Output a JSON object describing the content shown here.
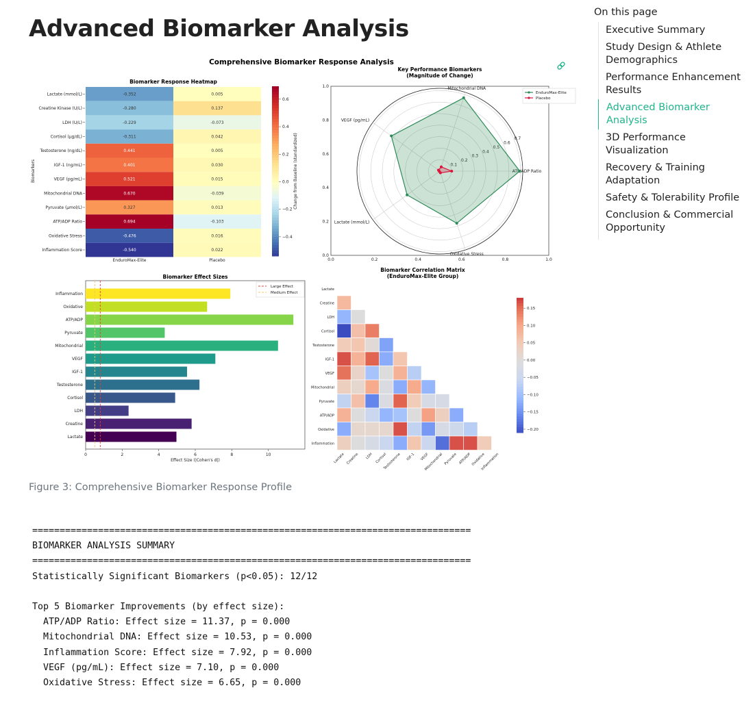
{
  "page": {
    "title": "Advanced Biomarker Analysis",
    "caption": "Figure 3: Comprehensive Biomarker Response Profile"
  },
  "toc": {
    "title": "On this page",
    "items": [
      {
        "label": "Executive Summary",
        "active": false
      },
      {
        "label": "Study Design & Athlete Demographics",
        "active": false
      },
      {
        "label": "Performance Enhancement Results",
        "active": false
      },
      {
        "label": "Advanced Biomarker Analysis",
        "active": true
      },
      {
        "label": "3D Performance Visualization",
        "active": false
      },
      {
        "label": "Recovery & Training Adaptation",
        "active": false
      },
      {
        "label": "Safety & Tolerability Profile",
        "active": false
      },
      {
        "label": "Conclusion & Commercial Opportunity",
        "active": false
      }
    ],
    "accent_color": "#1fb48a"
  },
  "figure": {
    "suptitle": "Comprehensive Biomarker Response Analysis",
    "link_icon": "link-icon"
  },
  "chart_data": [
    {
      "type": "heatmap",
      "title": "Biomarker Response Heatmap",
      "ylabel": "Biomarkers",
      "colorbar_label": "Change from Baseline (standardized)",
      "colormap": "RdYlBu_r",
      "colorbar_range": [
        -0.54,
        0.694
      ],
      "colorbar_ticks": [
        "0.6",
        "0.4",
        "0.2",
        "0.0",
        "−0.2",
        "−0.4"
      ],
      "columns": [
        "EnduroMax-Elite",
        "Placebo"
      ],
      "rows": [
        "Lactate (mmol/L)",
        "Creatine Kinase (U/L)",
        "LDH (U/L)",
        "Cortisol (μg/dL)",
        "Testosterone (ng/dL)",
        "IGF-1 (ng/mL)",
        "VEGF (pg/mL)",
        "Mitochondrial DNA",
        "Pyruvate (μmol/L)",
        "ATP/ADP Ratio",
        "Oxidative Stress",
        "Inflammation Score"
      ],
      "values": [
        [
          "-0.352",
          "0.005"
        ],
        [
          "-0.280",
          "0.137"
        ],
        [
          "-0.229",
          "-0.073"
        ],
        [
          "-0.311",
          "0.042"
        ],
        [
          "0.441",
          "0.005"
        ],
        [
          "0.401",
          "0.030"
        ],
        [
          "0.521",
          "0.015"
        ],
        [
          "0.670",
          "-0.039"
        ],
        [
          "0.327",
          "0.013"
        ],
        [
          "0.694",
          "-0.103"
        ],
        [
          "-0.476",
          "0.016"
        ],
        [
          "-0.540",
          "0.022"
        ]
      ]
    },
    {
      "type": "radar",
      "title": "Key Performance Biomarkers\n(Magnitude of Change)",
      "title_lines": [
        "Key Performance Biomarkers",
        "(Magnitude of Change)"
      ],
      "axes": [
        "ATP/ADP Ratio",
        "Mitochondrial DNA",
        "VEGF (pg/mL)",
        "Lactate (mmol/L)",
        "Oxidative Stress"
      ],
      "radial_ticks": [
        "0.1",
        "0.2",
        "0.3",
        "0.4",
        "0.5",
        "0.6",
        "0.7"
      ],
      "rmax": 0.72,
      "frame_ticks": [
        "0.0",
        "0.2",
        "0.4",
        "0.6",
        "0.8",
        "1.0"
      ],
      "legend_position": "top-right",
      "series": [
        {
          "name": "EnduroMax-Elite",
          "values": [
            0.694,
            0.67,
            0.521,
            0.352,
            0.476
          ],
          "color": "#2e8b57"
        },
        {
          "name": "Placebo",
          "values": [
            0.103,
            0.039,
            0.015,
            0.005,
            0.016
          ],
          "color": "#dc143c"
        }
      ]
    },
    {
      "type": "bar",
      "orientation": "horizontal",
      "title": "Biomarker Effect Sizes",
      "xlabel": "Effect Size (|Cohen's d|)",
      "xlim": [
        0,
        12
      ],
      "xticks": [
        "0",
        "2",
        "4",
        "6",
        "8",
        "10"
      ],
      "colormap": "viridis",
      "categories": [
        "Inflammation",
        "Oxidative",
        "ATP/ADP",
        "Pyruvate",
        "Mitochondrial",
        "VEGF",
        "IGF-1",
        "Testosterone",
        "Cortisol",
        "LDH",
        "Creatine",
        "Lactate"
      ],
      "values": [
        7.92,
        6.65,
        11.37,
        4.33,
        10.53,
        7.1,
        5.55,
        6.23,
        4.9,
        2.35,
        5.8,
        4.97
      ],
      "colors": [
        "#fde725",
        "#c2df23",
        "#86d549",
        "#52c569",
        "#2ab07f",
        "#1e9b8a",
        "#25858e",
        "#2d708e",
        "#38588c",
        "#433e85",
        "#482173",
        "#440154"
      ],
      "reference_lines": [
        {
          "name": "Large Effect",
          "value": 0.8,
          "color": "#e8402a"
        },
        {
          "name": "Medium Effect",
          "value": 0.5,
          "color": "#f6c56b"
        }
      ],
      "legend_position": "top-right"
    },
    {
      "type": "heatmap",
      "title_lines": [
        "Biomarker Correlation Matrix",
        "(EnduroMax-Elite Group)"
      ],
      "colormap": "coolwarm",
      "colorbar_range": [
        -0.21,
        0.18
      ],
      "colorbar_ticks": [
        "0.15",
        "0.10",
        "0.05",
        "0.00",
        "−0.05",
        "−0.10",
        "−0.15",
        "−0.20"
      ],
      "labels": [
        "Lactate",
        "Creatine",
        "LDH",
        "Cortisol",
        "Testosterone",
        "IGF-1",
        "VEGF",
        "Mitochondrial",
        "Pyruvate",
        "ATP/ADP",
        "Oxidative",
        "Inflammation"
      ],
      "lower_triangle": [
        [],
        [
          0.08
        ],
        [
          -0.11,
          0.0
        ],
        [
          -0.21,
          0.07,
          0.14
        ],
        [
          0.05,
          0.06,
          0.01,
          -0.13
        ],
        [
          0.17,
          0.09,
          0.16,
          -0.12,
          0.06
        ],
        [
          0.15,
          0.03,
          -0.09,
          0.0,
          0.09,
          -0.07
        ],
        [
          0.04,
          0.02,
          0.1,
          -0.01,
          -0.12,
          0.1,
          -0.11
        ],
        [
          -0.06,
          0.07,
          -0.16,
          -0.01,
          0.16,
          0.05,
          -0.02,
          -0.02
        ],
        [
          0.09,
          0.0,
          -0.05,
          -0.11,
          -0.09,
          0.0,
          0.11,
          0.04,
          -0.12
        ],
        [
          -0.12,
          0.02,
          0.02,
          0.02,
          0.17,
          -0.06,
          -0.14,
          -0.02,
          -0.04,
          -0.07
        ],
        [
          0.04,
          0.0,
          -0.02,
          -0.05,
          -0.12,
          0.06,
          -0.05,
          -0.18,
          0.17,
          0.17,
          0.05
        ]
      ]
    }
  ],
  "output": {
    "lines": [
      "================================================================================",
      "BIOMARKER ANALYSIS SUMMARY",
      "================================================================================",
      "Statistically Significant Biomarkers (p<0.05): 12/12",
      "",
      "Top 5 Biomarker Improvements (by effect size):",
      "  ATP/ADP Ratio: Effect size = 11.37, p = 0.000",
      "  Mitochondrial DNA: Effect size = 10.53, p = 0.000",
      "  Inflammation Score: Effect size = 7.92, p = 0.000",
      "  VEGF (pg/mL): Effect size = 7.10, p = 0.000",
      "  Oxidative Stress: Effect size = 6.65, p = 0.000"
    ]
  }
}
